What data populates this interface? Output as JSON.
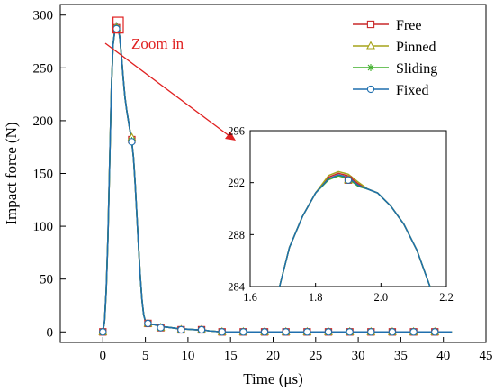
{
  "chart_data": {
    "type": "line",
    "xlabel": "Time (μs)",
    "ylabel": "Impact force (N)",
    "xlim": [
      -5,
      45
    ],
    "ylim": [
      -10,
      310
    ],
    "xticks": [
      0,
      5,
      10,
      15,
      20,
      25,
      30,
      35,
      40,
      45
    ],
    "yticks": [
      0,
      50,
      100,
      150,
      200,
      250,
      300
    ],
    "x": [
      0.0,
      0.2,
      0.4,
      0.6,
      0.8,
      1.0,
      1.2,
      1.4,
      1.6,
      1.8,
      2.0,
      2.2,
      2.4,
      2.6,
      2.8,
      3.0,
      3.2,
      3.4,
      3.6,
      3.8,
      4.0,
      4.2,
      4.4,
      4.6,
      4.8,
      5.0,
      5.2,
      5.5,
      6.0,
      7.0,
      8.0,
      9.0,
      10.0,
      11.0,
      11.6,
      12.5,
      14.0,
      16.5,
      19.0,
      21.5,
      24.0,
      26.5,
      29.0,
      31.5,
      34.0,
      36.5,
      39.0,
      41.0
    ],
    "y": [
      0,
      10,
      40,
      90,
      160,
      230,
      272,
      285,
      292,
      290,
      278,
      260,
      240,
      222,
      210,
      200,
      190,
      180,
      165,
      140,
      110,
      80,
      52,
      30,
      16,
      10,
      8,
      7,
      7,
      5,
      4,
      3,
      2.5,
      2,
      2,
      1,
      0,
      0,
      0,
      0,
      0,
      0,
      0,
      0,
      0,
      0,
      0,
      0
    ],
    "series": [
      {
        "name": "Free",
        "color": "#c8282a",
        "marker": "square",
        "marker_x": [
          0,
          1.6,
          3.4,
          5.3,
          6.8,
          9.2,
          11.6,
          14,
          16.5,
          19,
          21.5,
          24,
          26.5,
          29,
          31.5,
          34,
          36.5,
          39
        ],
        "marker_y": [
          0,
          288,
          182,
          8,
          4,
          2,
          2,
          0,
          0,
          0,
          0,
          0,
          0,
          0,
          0,
          0,
          0,
          0
        ]
      },
      {
        "name": "Pinned",
        "color": "#a6a31a",
        "marker": "triangle",
        "marker_x": [
          0,
          1.6,
          3.4,
          5.3,
          6.8,
          9.2,
          11.6,
          14,
          16.5,
          19,
          21.5,
          24,
          26.5,
          29,
          31.5,
          34,
          36.5,
          39
        ],
        "marker_y": [
          0,
          288,
          184,
          8,
          4,
          2,
          2,
          0,
          0,
          0,
          0,
          0,
          0,
          0,
          0,
          0,
          0,
          0
        ]
      },
      {
        "name": "Sliding",
        "color": "#3faf2a",
        "marker": "asterisk",
        "marker_x": [
          0,
          1.6,
          3.4,
          5.3,
          6.8,
          9.2,
          11.6,
          14,
          16.5,
          19,
          21.5,
          24,
          26.5,
          29,
          31.5,
          34,
          36.5,
          39
        ],
        "marker_y": [
          0,
          288,
          181,
          8,
          4,
          2,
          2,
          0,
          0,
          0,
          0,
          0,
          0,
          0,
          0,
          0,
          0,
          0
        ]
      },
      {
        "name": "Fixed",
        "color": "#1f6fae",
        "marker": "circle",
        "marker_x": [
          0,
          1.6,
          3.4,
          5.3,
          6.8,
          9.2,
          11.6,
          14,
          16.5,
          19,
          21.5,
          24,
          26.5,
          29,
          31.5,
          34,
          36.5,
          39
        ],
        "marker_y": [
          0,
          287,
          180,
          8,
          4,
          2,
          2,
          0,
          0,
          0,
          0,
          0,
          0,
          0,
          0,
          0,
          0,
          0
        ]
      }
    ],
    "legend": "top-right",
    "grid": false,
    "annotation": {
      "text": "Zoom in",
      "color": "#e02020",
      "box_x": [
        1.2,
        2.4
      ],
      "box_y": [
        283,
        298
      ]
    },
    "inset": {
      "xlim": [
        1.6,
        2.2
      ],
      "ylim": [
        284,
        296
      ],
      "xticks": [
        "1.6",
        "1.8",
        "2.0",
        "2.2"
      ],
      "yticks": [
        "284",
        "288",
        "292",
        "296"
      ],
      "x": [
        1.69,
        1.72,
        1.76,
        1.8,
        1.84,
        1.87,
        1.9,
        1.93,
        1.96,
        1.99,
        2.03,
        2.07,
        2.11,
        2.15
      ],
      "y": [
        284.0,
        287.0,
        289.4,
        291.2,
        292.3,
        292.6,
        292.4,
        291.8,
        291.5,
        291.2,
        290.2,
        288.8,
        286.8,
        284.0
      ],
      "marker_x": [
        1.9
      ],
      "marker_y": [
        292.2
      ]
    }
  }
}
